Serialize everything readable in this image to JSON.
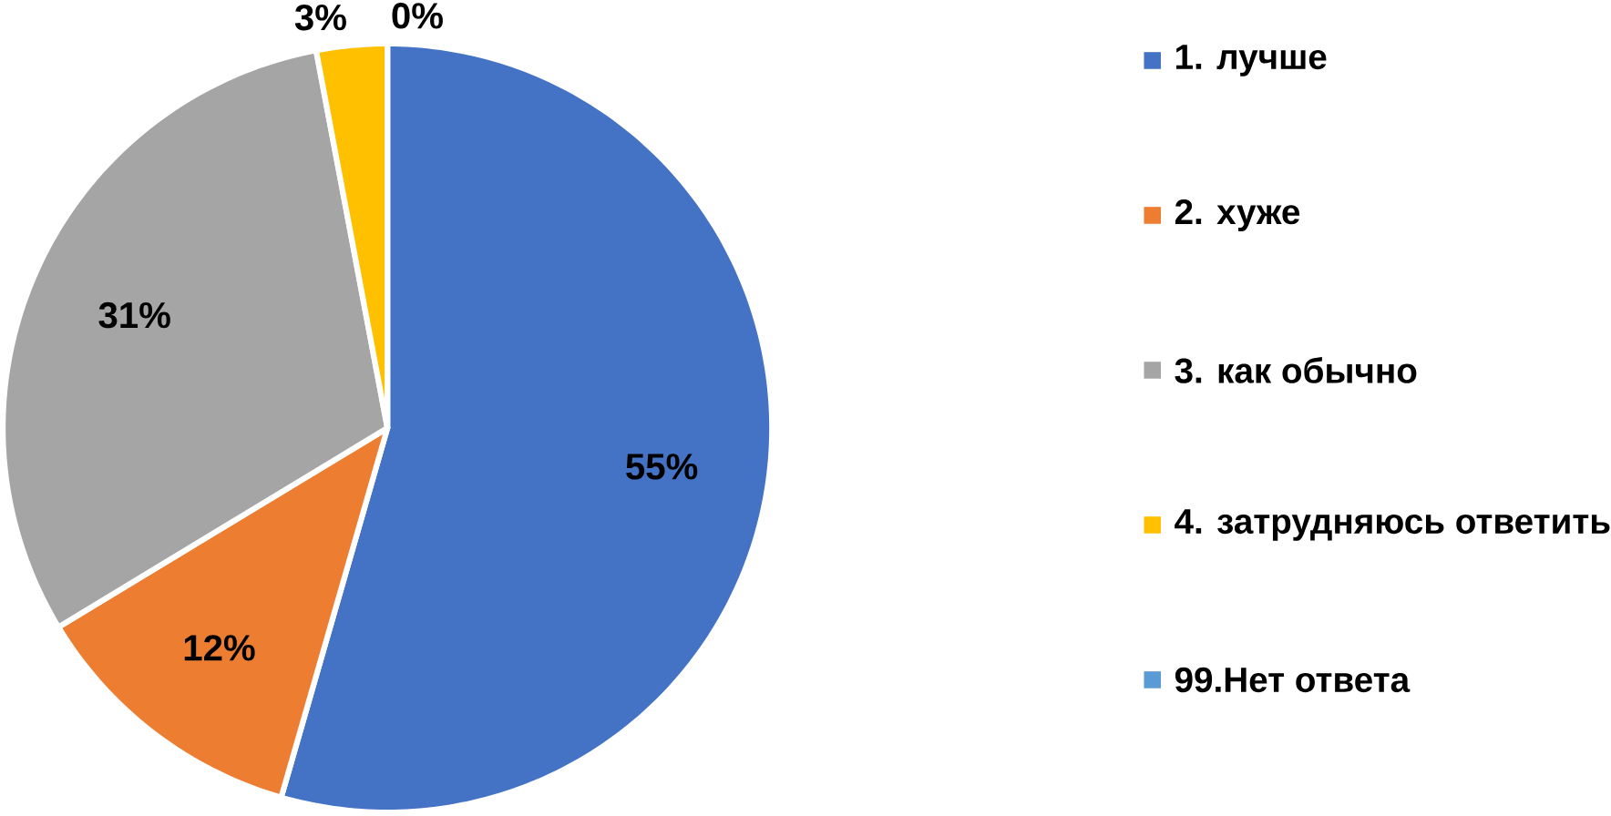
{
  "chart_data": {
    "type": "pie",
    "categories": [
      "1. лучше",
      "2. хуже",
      "3. как обычно",
      "4. затрудняюсь ответить",
      "99.Нет ответа"
    ],
    "values": [
      55,
      12,
      31,
      3,
      0
    ],
    "colors": [
      "#4472c4",
      "#ed7d31",
      "#a5a5a5",
      "#ffc000",
      "#5b9bd5"
    ],
    "value_labels": [
      "55%",
      "12%",
      "31%",
      "3%",
      "0%"
    ],
    "legend": "right"
  }
}
